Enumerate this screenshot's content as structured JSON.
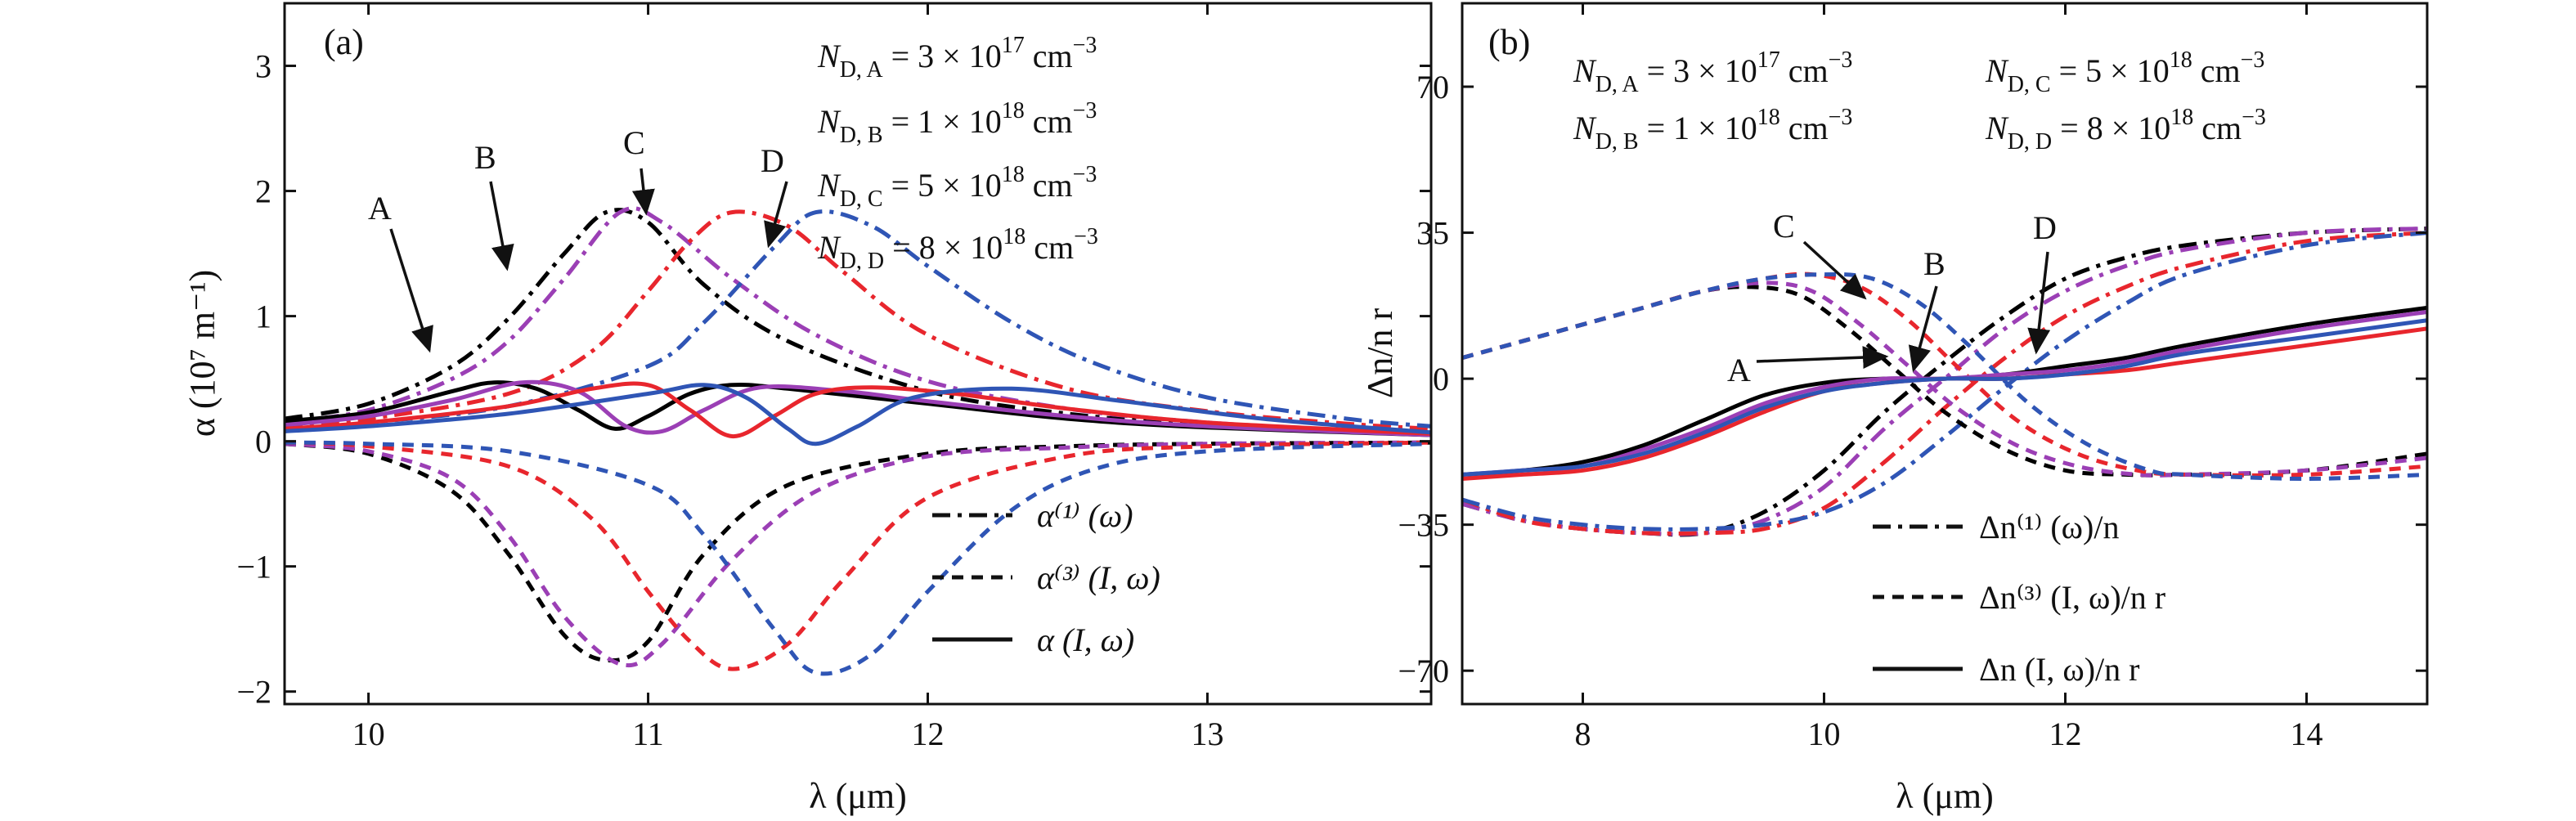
{
  "colors": {
    "A": "#000000",
    "B": "#9b3fb5",
    "C": "#e8262d",
    "D": "#2f55b5"
  },
  "chart_data": [
    {
      "type": "line",
      "panel": "(a)",
      "xlabel": "λ (μm)",
      "ylabel": "α (10⁷ m⁻¹)",
      "xlim": [
        9.7,
        13.8
      ],
      "ylim": [
        -2.1,
        3.5
      ],
      "xticks": [
        10,
        11,
        12,
        13
      ],
      "yticks": [
        -2,
        -1,
        0,
        1,
        2,
        3
      ],
      "xtick_labels": [
        "10",
        "11",
        "12",
        "13"
      ],
      "ytick_labels": [
        "−2",
        "−1",
        "0",
        "1",
        "2",
        "3"
      ],
      "legend": [
        {
          "style": "dashdot",
          "label": "α⁽¹⁾ (ω)"
        },
        {
          "style": "dash",
          "label": "α⁽³⁾ (I, ω)"
        },
        {
          "style": "solid",
          "label": "α (I, ω)"
        }
      ],
      "annotations": [
        {
          "text": "N D,A = 3 × 10¹⁷ cm⁻³"
        },
        {
          "text": "N D,B = 1 × 10¹⁸ cm⁻³"
        },
        {
          "text": "N D,C = 5 × 10¹⁸ cm⁻³"
        },
        {
          "text": "N D,D = 8 × 10¹⁸ cm⁻³"
        }
      ],
      "curve_labels": [
        {
          "text": "A",
          "x": 10.3,
          "y": 0.75
        },
        {
          "text": "B",
          "x": 10.7,
          "y": 1.55
        },
        {
          "text": "C",
          "x": 11.3,
          "y": 1.9
        },
        {
          "text": "D",
          "x": 11.75,
          "y": 1.75
        }
      ],
      "series": [
        {
          "curve": "A",
          "kind": "alpha1",
          "x": [
            9.7,
            10.0,
            10.3,
            10.5,
            10.7,
            10.85,
            11.0,
            11.2,
            11.5,
            12.0,
            12.5,
            13.0,
            13.5,
            13.8
          ],
          "y": [
            0.18,
            0.3,
            0.6,
            0.98,
            1.5,
            1.83,
            1.75,
            1.25,
            0.8,
            0.4,
            0.22,
            0.13,
            0.08,
            0.06
          ]
        },
        {
          "curve": "B",
          "kind": "alpha1",
          "x": [
            9.7,
            10.0,
            10.3,
            10.5,
            10.7,
            10.9,
            11.05,
            11.3,
            11.6,
            12.0,
            12.5,
            13.0,
            13.5,
            13.8
          ],
          "y": [
            0.15,
            0.25,
            0.5,
            0.8,
            1.3,
            1.83,
            1.75,
            1.3,
            0.85,
            0.48,
            0.26,
            0.15,
            0.09,
            0.07
          ]
        },
        {
          "curve": "C",
          "kind": "alpha1",
          "x": [
            9.7,
            10.0,
            10.5,
            10.8,
            11.0,
            11.15,
            11.3,
            11.5,
            11.7,
            12.0,
            12.5,
            13.0,
            13.5,
            13.8
          ],
          "y": [
            0.12,
            0.18,
            0.38,
            0.72,
            1.2,
            1.6,
            1.83,
            1.72,
            1.35,
            0.85,
            0.42,
            0.24,
            0.14,
            0.1
          ]
        },
        {
          "curve": "D",
          "kind": "alpha1",
          "x": [
            9.7,
            10.0,
            10.5,
            11.0,
            11.2,
            11.45,
            11.6,
            11.8,
            12.0,
            12.3,
            12.6,
            13.0,
            13.5,
            13.8
          ],
          "y": [
            0.1,
            0.15,
            0.28,
            0.6,
            0.95,
            1.55,
            1.83,
            1.72,
            1.4,
            0.95,
            0.62,
            0.35,
            0.18,
            0.12
          ]
        },
        {
          "curve": "A",
          "kind": "alpha3",
          "x": [
            9.7,
            10.0,
            10.3,
            10.5,
            10.7,
            10.85,
            11.0,
            11.2,
            11.5,
            12.0,
            12.5,
            13.0,
            13.8
          ],
          "y": [
            -0.02,
            -0.1,
            -0.4,
            -0.9,
            -1.55,
            -1.75,
            -1.6,
            -0.9,
            -0.35,
            -0.1,
            -0.04,
            -0.02,
            -0.01
          ]
        },
        {
          "curve": "B",
          "kind": "alpha3",
          "x": [
            9.7,
            10.0,
            10.3,
            10.5,
            10.7,
            10.9,
            11.05,
            11.3,
            11.6,
            12.0,
            12.5,
            13.0,
            13.8
          ],
          "y": [
            -0.02,
            -0.08,
            -0.3,
            -0.75,
            -1.4,
            -1.78,
            -1.62,
            -0.95,
            -0.4,
            -0.12,
            -0.05,
            -0.02,
            -0.01
          ]
        },
        {
          "curve": "C",
          "kind": "alpha3",
          "x": [
            9.7,
            10.0,
            10.5,
            10.8,
            11.0,
            11.15,
            11.3,
            11.5,
            11.7,
            12.0,
            12.5,
            13.0,
            13.8
          ],
          "y": [
            -0.01,
            -0.04,
            -0.2,
            -0.62,
            -1.2,
            -1.6,
            -1.82,
            -1.62,
            -1.1,
            -0.45,
            -0.12,
            -0.04,
            -0.01
          ]
        },
        {
          "curve": "D",
          "kind": "alpha3",
          "x": [
            9.7,
            10.0,
            10.5,
            11.0,
            11.2,
            11.45,
            11.6,
            11.8,
            12.0,
            12.3,
            12.6,
            13.0,
            13.8
          ],
          "y": [
            -0.01,
            -0.02,
            -0.08,
            -0.35,
            -0.75,
            -1.5,
            -1.85,
            -1.7,
            -1.2,
            -0.55,
            -0.22,
            -0.08,
            -0.02
          ]
        },
        {
          "curve": "A",
          "kind": "alpha",
          "x": [
            9.7,
            10.0,
            10.3,
            10.45,
            10.6,
            10.75,
            10.88,
            11.0,
            11.15,
            11.3,
            11.5,
            12.0,
            12.5,
            13.0,
            13.8
          ],
          "y": [
            0.16,
            0.23,
            0.4,
            0.47,
            0.42,
            0.25,
            0.1,
            0.2,
            0.38,
            0.45,
            0.42,
            0.3,
            0.18,
            0.11,
            0.05
          ]
        },
        {
          "curve": "B",
          "kind": "alpha",
          "x": [
            9.7,
            10.0,
            10.3,
            10.55,
            10.75,
            10.92,
            11.05,
            11.2,
            11.4,
            11.7,
            12.0,
            12.5,
            13.0,
            13.8
          ],
          "y": [
            0.13,
            0.2,
            0.33,
            0.47,
            0.4,
            0.12,
            0.08,
            0.25,
            0.43,
            0.4,
            0.32,
            0.2,
            0.12,
            0.05
          ]
        },
        {
          "curve": "C",
          "kind": "alpha",
          "x": [
            9.7,
            10.0,
            10.5,
            10.8,
            11.0,
            11.15,
            11.3,
            11.45,
            11.6,
            11.8,
            12.1,
            12.5,
            13.0,
            13.8
          ],
          "y": [
            0.1,
            0.15,
            0.28,
            0.42,
            0.45,
            0.25,
            0.04,
            0.2,
            0.38,
            0.43,
            0.38,
            0.26,
            0.15,
            0.06
          ]
        },
        {
          "curve": "D",
          "kind": "alpha",
          "x": [
            9.7,
            10.0,
            10.5,
            11.0,
            11.2,
            11.35,
            11.5,
            11.6,
            11.75,
            11.95,
            12.3,
            12.7,
            13.2,
            13.8
          ],
          "y": [
            0.08,
            0.12,
            0.22,
            0.38,
            0.45,
            0.35,
            0.1,
            -0.02,
            0.12,
            0.35,
            0.42,
            0.32,
            0.18,
            0.07
          ]
        }
      ]
    },
    {
      "type": "line",
      "panel": "(b)",
      "xlabel": "λ (μm)",
      "ylabel": "Δn/n r",
      "xlim": [
        7,
        15
      ],
      "ylim": [
        -78,
        90
      ],
      "xticks": [
        8,
        10,
        12,
        14
      ],
      "yticks": [
        -70,
        -35,
        0,
        35,
        70
      ],
      "xtick_labels": [
        "8",
        "10",
        "12",
        "14"
      ],
      "ytick_labels": [
        "−70",
        "−35",
        "0",
        "35",
        "70"
      ],
      "legend": [
        {
          "style": "dashdot",
          "label": "Δn⁽¹⁾ (ω)/n"
        },
        {
          "style": "dash",
          "label": "Δn⁽³⁾ (I, ω)/n r"
        },
        {
          "style": "solid",
          "label": "Δn (I, ω)/n r"
        }
      ],
      "annotations": [
        {
          "text": "N D,A = 3 × 10¹⁷ cm⁻³"
        },
        {
          "text": "N D,C = 5 × 10¹⁸ cm⁻³"
        },
        {
          "text": "N D,B = 1 × 10¹⁸ cm⁻³"
        },
        {
          "text": "N D,D = 8 × 10¹⁸ cm⁻³"
        }
      ],
      "curve_labels": [
        {
          "text": "A",
          "x": 10.1,
          "y": 5
        },
        {
          "text": "B",
          "x": 10.95,
          "y": 18
        },
        {
          "text": "C",
          "x": 10.2,
          "y": 30
        },
        {
          "text": "D",
          "x": 11.7,
          "y": 28
        }
      ],
      "series": [
        {
          "curve": "A",
          "kind": "dn1",
          "x": [
            7,
            7.5,
            8,
            8.5,
            9,
            9.5,
            10,
            10.5,
            11,
            11.5,
            12,
            12.5,
            13,
            14,
            15
          ],
          "y": [
            -30,
            -34,
            -36,
            -37,
            -37,
            -32,
            -22,
            -8,
            4,
            15,
            24,
            29,
            32,
            35,
            36
          ]
        },
        {
          "curve": "B",
          "kind": "dn1",
          "x": [
            7,
            7.5,
            8,
            8.5,
            9,
            9.5,
            10,
            10.5,
            11,
            11.5,
            12,
            12.5,
            13,
            14,
            15
          ],
          "y": [
            -30,
            -34,
            -36,
            -37,
            -37,
            -34,
            -26,
            -12,
            0,
            12,
            21,
            27,
            31,
            35,
            36
          ]
        },
        {
          "curve": "C",
          "kind": "dn1",
          "x": [
            7,
            7.5,
            8,
            8.5,
            9,
            9.5,
            10,
            10.5,
            11,
            11.5,
            12,
            12.5,
            13,
            14,
            15
          ],
          "y": [
            -29,
            -34,
            -36,
            -37,
            -37,
            -36,
            -31,
            -20,
            -7,
            5,
            15,
            22,
            27,
            33,
            35
          ]
        },
        {
          "curve": "D",
          "kind": "dn1",
          "x": [
            7,
            7.5,
            8,
            8.5,
            9,
            9.5,
            10,
            10.5,
            11,
            11.5,
            12,
            12.5,
            13,
            14,
            15
          ],
          "y": [
            -29,
            -33,
            -35,
            -36,
            -36,
            -35,
            -32,
            -25,
            -14,
            -2,
            9,
            18,
            25,
            32,
            35
          ]
        },
        {
          "curve": "A",
          "kind": "dn3",
          "x": [
            7,
            7.5,
            8,
            8.5,
            9,
            9.4,
            9.8,
            10.2,
            10.6,
            11,
            11.5,
            12,
            12.5,
            13,
            14,
            15
          ],
          "y": [
            5,
            9,
            13,
            17,
            21,
            22,
            20,
            12,
            2,
            -8,
            -17,
            -22,
            -23,
            -23,
            -22,
            -18
          ]
        },
        {
          "curve": "B",
          "kind": "dn3",
          "x": [
            7,
            7.5,
            8,
            8.5,
            9,
            9.5,
            9.9,
            10.3,
            10.7,
            11.1,
            11.6,
            12.1,
            12.6,
            13,
            14,
            15
          ],
          "y": [
            5,
            9,
            13,
            17,
            21,
            23,
            21,
            13,
            3,
            -7,
            -16,
            -21,
            -23,
            -23,
            -22,
            -19
          ]
        },
        {
          "curve": "C",
          "kind": "dn3",
          "x": [
            7,
            7.5,
            8,
            8.5,
            9,
            9.5,
            9.9,
            10.3,
            10.7,
            11.1,
            11.6,
            12.1,
            12.6,
            13,
            14,
            15
          ],
          "y": [
            5,
            9,
            13,
            17,
            21,
            24,
            25,
            22,
            14,
            3,
            -10,
            -18,
            -22,
            -23,
            -23,
            -21
          ]
        },
        {
          "curve": "D",
          "kind": "dn3",
          "x": [
            7,
            7.5,
            8,
            8.5,
            9,
            9.5,
            10,
            10.4,
            10.8,
            11.2,
            11.7,
            12.2,
            12.7,
            13,
            14,
            15
          ],
          "y": [
            5,
            9,
            13,
            17,
            21,
            24,
            25,
            24,
            18,
            8,
            -6,
            -16,
            -22,
            -23,
            -24,
            -23
          ]
        },
        {
          "curve": "A",
          "kind": "dn",
          "x": [
            7,
            7.5,
            8,
            8.5,
            9,
            9.5,
            10,
            10.5,
            11,
            11.5,
            12,
            12.5,
            13,
            14,
            15
          ],
          "y": [
            -23,
            -22,
            -20,
            -16,
            -10,
            -4,
            -1,
            0,
            0,
            1,
            3,
            5,
            8,
            13,
            17
          ]
        },
        {
          "curve": "B",
          "kind": "dn",
          "x": [
            7,
            7.5,
            8,
            8.5,
            9,
            9.5,
            10,
            10.5,
            11,
            11.5,
            12,
            12.5,
            13,
            14,
            15
          ],
          "y": [
            -23,
            -22,
            -21,
            -17,
            -12,
            -6,
            -2,
            0,
            0,
            1,
            2,
            4,
            7,
            12,
            16
          ]
        },
        {
          "curve": "C",
          "kind": "dn",
          "x": [
            7,
            7.5,
            8,
            8.5,
            9,
            9.5,
            10,
            10.5,
            11,
            11.5,
            12,
            12.5,
            13,
            14,
            15
          ],
          "y": [
            -24,
            -23,
            -22,
            -19,
            -14,
            -8,
            -3,
            -1,
            0,
            0,
            1,
            2,
            4,
            8,
            12
          ]
        },
        {
          "curve": "D",
          "kind": "dn",
          "x": [
            7,
            7.5,
            8,
            8.5,
            9,
            9.5,
            10,
            10.5,
            11,
            11.5,
            12,
            12.5,
            13,
            14,
            15
          ],
          "y": [
            -23,
            -22,
            -21,
            -18,
            -13,
            -7,
            -3,
            -1,
            0,
            0,
            1,
            3,
            6,
            10,
            14
          ]
        }
      ]
    }
  ]
}
